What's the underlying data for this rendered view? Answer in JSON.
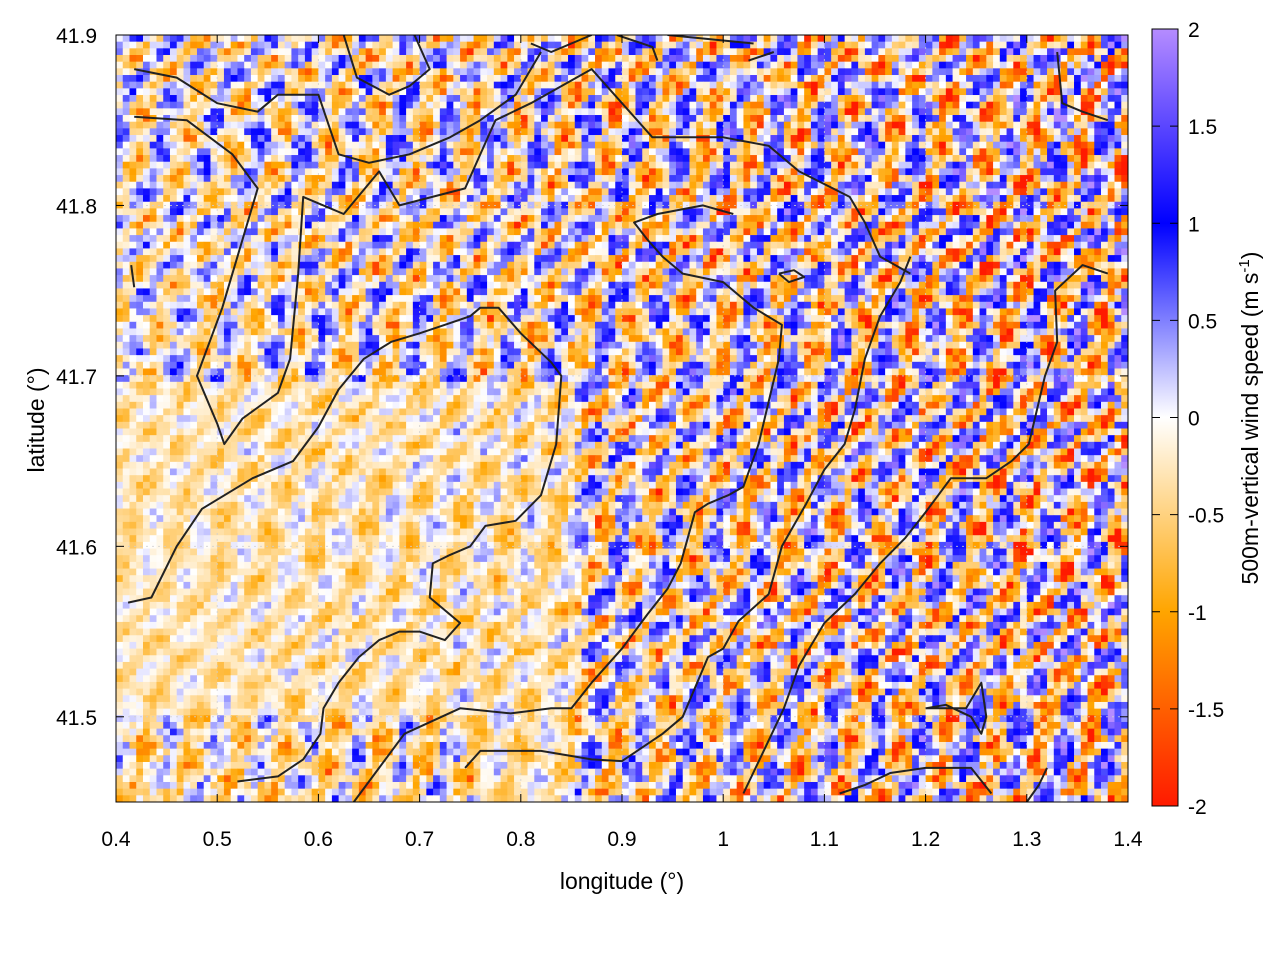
{
  "chart_data": {
    "type": "heatmap",
    "title": "",
    "xlabel": "longitude (°)",
    "ylabel": "latitude (°)",
    "colorbar_label": "500m-vertical wind speed (m s",
    "colorbar_label_sup": "-1",
    "colorbar_label_close": ")",
    "xlim": [
      0.4,
      1.4
    ],
    "ylim": [
      41.45,
      41.9
    ],
    "x_ticks": [
      0.4,
      0.5,
      0.6,
      0.7,
      0.8,
      0.9,
      1.0,
      1.1,
      1.2,
      1.3,
      1.4
    ],
    "x_tick_labels": [
      "0.4",
      "0.5",
      "0.6",
      "0.7",
      "0.8",
      "0.9",
      "1",
      "1.1",
      "1.2",
      "1.3",
      "1.4"
    ],
    "y_ticks": [
      41.5,
      41.6,
      41.7,
      41.8,
      41.9
    ],
    "y_tick_labels": [
      "41.5",
      "41.6",
      "41.7",
      "41.8",
      "41.9"
    ],
    "colorbar_range": [
      -2,
      2
    ],
    "colorbar_ticks": [
      2,
      1.5,
      1,
      0.5,
      0,
      -0.5,
      -1,
      -1.5,
      -2
    ],
    "colorbar_tick_labels": [
      "2",
      "1.5",
      "1",
      "0.5",
      "0",
      "-0.5",
      "-1",
      "-1.5",
      "-2"
    ],
    "colormap": [
      {
        "value": -2.0,
        "color": "#ff1a00"
      },
      {
        "value": -1.0,
        "color": "#ffa500"
      },
      {
        "value": 0.0,
        "color": "#ffffff"
      },
      {
        "value": 1.0,
        "color": "#0000ff"
      },
      {
        "value": 2.0,
        "color": "#b58cff"
      }
    ],
    "grid": true,
    "grid_color": "#d0d0d0",
    "contour_color": "#222222",
    "contours": [
      [
        [
          0.418,
          41.852
        ],
        [
          0.47,
          41.85
        ],
        [
          0.515,
          41.83
        ],
        [
          0.54,
          41.81
        ],
        [
          0.505,
          41.74
        ],
        [
          0.48,
          41.7
        ],
        [
          0.5,
          41.672
        ],
        [
          0.507,
          41.66
        ],
        [
          0.525,
          41.675
        ],
        [
          0.56,
          41.69
        ],
        [
          0.572,
          41.71
        ],
        [
          0.58,
          41.76
        ],
        [
          0.585,
          41.805
        ],
        [
          0.625,
          41.795
        ],
        [
          0.66,
          41.82
        ],
        [
          0.68,
          41.8
        ],
        [
          0.745,
          41.81
        ],
        [
          0.775,
          41.85
        ],
        [
          0.81,
          41.86
        ],
        [
          0.87,
          41.88
        ],
        [
          0.93,
          41.84
        ],
        [
          1.0,
          41.84
        ],
        [
          1.045,
          41.835
        ],
        [
          1.075,
          41.82
        ],
        [
          1.125,
          41.805
        ],
        [
          1.14,
          41.79
        ],
        [
          1.155,
          41.77
        ],
        [
          1.185,
          41.76
        ]
      ],
      [
        [
          0.418,
          41.88
        ],
        [
          0.46,
          41.875
        ],
        [
          0.5,
          41.86
        ],
        [
          0.54,
          41.855
        ],
        [
          0.56,
          41.865
        ],
        [
          0.6,
          41.865
        ],
        [
          0.62,
          41.83
        ],
        [
          0.65,
          41.825
        ],
        [
          0.69,
          41.83
        ],
        [
          0.73,
          41.84
        ],
        [
          0.76,
          41.85
        ],
        [
          0.795,
          41.865
        ],
        [
          0.82,
          41.89
        ]
      ],
      [
        [
          0.625,
          41.9
        ],
        [
          0.638,
          41.875
        ],
        [
          0.67,
          41.865
        ],
        [
          0.69,
          41.87
        ],
        [
          0.71,
          41.88
        ],
        [
          0.695,
          41.9
        ]
      ],
      [
        [
          0.81,
          41.895
        ],
        [
          0.83,
          41.89
        ],
        [
          0.87,
          41.9
        ]
      ],
      [
        [
          0.895,
          41.9
        ],
        [
          0.93,
          41.893
        ],
        [
          0.935,
          41.885
        ]
      ],
      [
        [
          0.945,
          41.9
        ],
        [
          1.03,
          41.895
        ]
      ],
      [
        [
          1.025,
          41.885
        ],
        [
          1.05,
          41.89
        ]
      ],
      [
        [
          0.415,
          41.765
        ],
        [
          0.418,
          41.752
        ]
      ],
      [
        [
          0.412,
          41.567
        ],
        [
          0.435,
          41.57
        ],
        [
          0.46,
          41.6
        ],
        [
          0.485,
          41.622
        ],
        [
          0.535,
          41.64
        ],
        [
          0.575,
          41.65
        ],
        [
          0.6,
          41.67
        ],
        [
          0.62,
          41.692
        ],
        [
          0.645,
          41.71
        ],
        [
          0.672,
          41.72
        ],
        [
          0.7,
          41.725
        ],
        [
          0.725,
          41.73
        ],
        [
          0.75,
          41.735
        ],
        [
          0.76,
          41.74
        ],
        [
          0.778,
          41.74
        ],
        [
          0.8,
          41.725
        ],
        [
          0.83,
          41.708
        ],
        [
          0.84,
          41.7
        ],
        [
          0.835,
          41.66
        ],
        [
          0.82,
          41.63
        ],
        [
          0.795,
          41.615
        ],
        [
          0.765,
          41.612
        ],
        [
          0.75,
          41.6
        ],
        [
          0.73,
          41.595
        ],
        [
          0.713,
          41.59
        ],
        [
          0.71,
          41.57
        ],
        [
          0.74,
          41.555
        ],
        [
          0.725,
          41.545
        ],
        [
          0.7,
          41.55
        ],
        [
          0.68,
          41.55
        ],
        [
          0.66,
          41.545
        ],
        [
          0.64,
          41.535
        ],
        [
          0.62,
          41.52
        ],
        [
          0.605,
          41.505
        ],
        [
          0.602,
          41.49
        ],
        [
          0.585,
          41.475
        ],
        [
          0.56,
          41.465
        ],
        [
          0.52,
          41.462
        ]
      ],
      [
        [
          0.745,
          41.47
        ],
        [
          0.76,
          41.48
        ],
        [
          0.82,
          41.48
        ],
        [
          0.87,
          41.475
        ],
        [
          0.9,
          41.474
        ],
        [
          0.94,
          41.49
        ],
        [
          0.96,
          41.5
        ],
        [
          0.985,
          41.535
        ],
        [
          1.0,
          41.54
        ],
        [
          1.015,
          41.556
        ],
        [
          1.045,
          41.572
        ],
        [
          1.058,
          41.6
        ],
        [
          1.082,
          41.625
        ],
        [
          1.1,
          41.645
        ],
        [
          1.12,
          41.66
        ],
        [
          1.13,
          41.68
        ],
        [
          1.14,
          41.71
        ],
        [
          1.155,
          41.735
        ],
        [
          1.175,
          41.755
        ],
        [
          1.185,
          41.77
        ]
      ],
      [
        [
          0.635,
          41.45
        ],
        [
          0.66,
          41.47
        ],
        [
          0.685,
          41.49
        ],
        [
          0.74,
          41.505
        ],
        [
          0.79,
          41.502
        ],
        [
          0.83,
          41.505
        ],
        [
          0.85,
          41.505
        ],
        [
          0.87,
          41.52
        ],
        [
          0.9,
          41.54
        ],
        [
          0.925,
          41.56
        ],
        [
          0.945,
          41.575
        ],
        [
          0.958,
          41.59
        ],
        [
          0.965,
          41.605
        ],
        [
          0.972,
          41.62
        ],
        [
          0.985,
          41.625
        ],
        [
          1.005,
          41.63
        ],
        [
          1.02,
          41.635
        ],
        [
          1.035,
          41.66
        ],
        [
          1.045,
          41.685
        ],
        [
          1.055,
          41.71
        ],
        [
          1.058,
          41.73
        ],
        [
          1.03,
          41.74
        ],
        [
          1.0,
          41.755
        ],
        [
          0.96,
          41.76
        ],
        [
          0.94,
          41.77
        ],
        [
          0.925,
          41.78
        ],
        [
          0.912,
          41.79
        ],
        [
          0.935,
          41.795
        ],
        [
          0.98,
          41.8
        ],
        [
          1.01,
          41.795
        ]
      ],
      [
        [
          1.02,
          41.455
        ],
        [
          1.04,
          41.48
        ],
        [
          1.06,
          41.505
        ],
        [
          1.075,
          41.53
        ],
        [
          1.1,
          41.555
        ],
        [
          1.13,
          41.572
        ],
        [
          1.155,
          41.59
        ],
        [
          1.18,
          41.605
        ],
        [
          1.2,
          41.62
        ],
        [
          1.225,
          41.64
        ],
        [
          1.26,
          41.64
        ],
        [
          1.285,
          41.65
        ],
        [
          1.302,
          41.66
        ],
        [
          1.318,
          41.7
        ],
        [
          1.33,
          41.72
        ],
        [
          1.328,
          41.75
        ],
        [
          1.355,
          41.765
        ],
        [
          1.38,
          41.76
        ]
      ],
      [
        [
          1.115,
          41.455
        ],
        [
          1.14,
          41.46
        ],
        [
          1.165,
          41.467
        ],
        [
          1.2,
          41.47
        ],
        [
          1.245,
          41.47
        ],
        [
          1.265,
          41.455
        ]
      ],
      [
        [
          1.2,
          41.505
        ],
        [
          1.24,
          41.505
        ],
        [
          1.255,
          41.52
        ],
        [
          1.26,
          41.5
        ],
        [
          1.255,
          41.49
        ],
        [
          1.245,
          41.5
        ],
        [
          1.22,
          41.507
        ],
        [
          1.2,
          41.505
        ]
      ],
      [
        [
          1.055,
          41.76
        ],
        [
          1.07,
          41.762
        ],
        [
          1.08,
          41.758
        ],
        [
          1.065,
          41.755
        ],
        [
          1.055,
          41.76
        ]
      ],
      [
        [
          1.33,
          41.89
        ],
        [
          1.335,
          41.86
        ],
        [
          1.355,
          41.855
        ],
        [
          1.38,
          41.85
        ]
      ],
      [
        [
          1.3,
          41.45
        ],
        [
          1.312,
          41.46
        ],
        [
          1.32,
          41.47
        ]
      ]
    ]
  }
}
